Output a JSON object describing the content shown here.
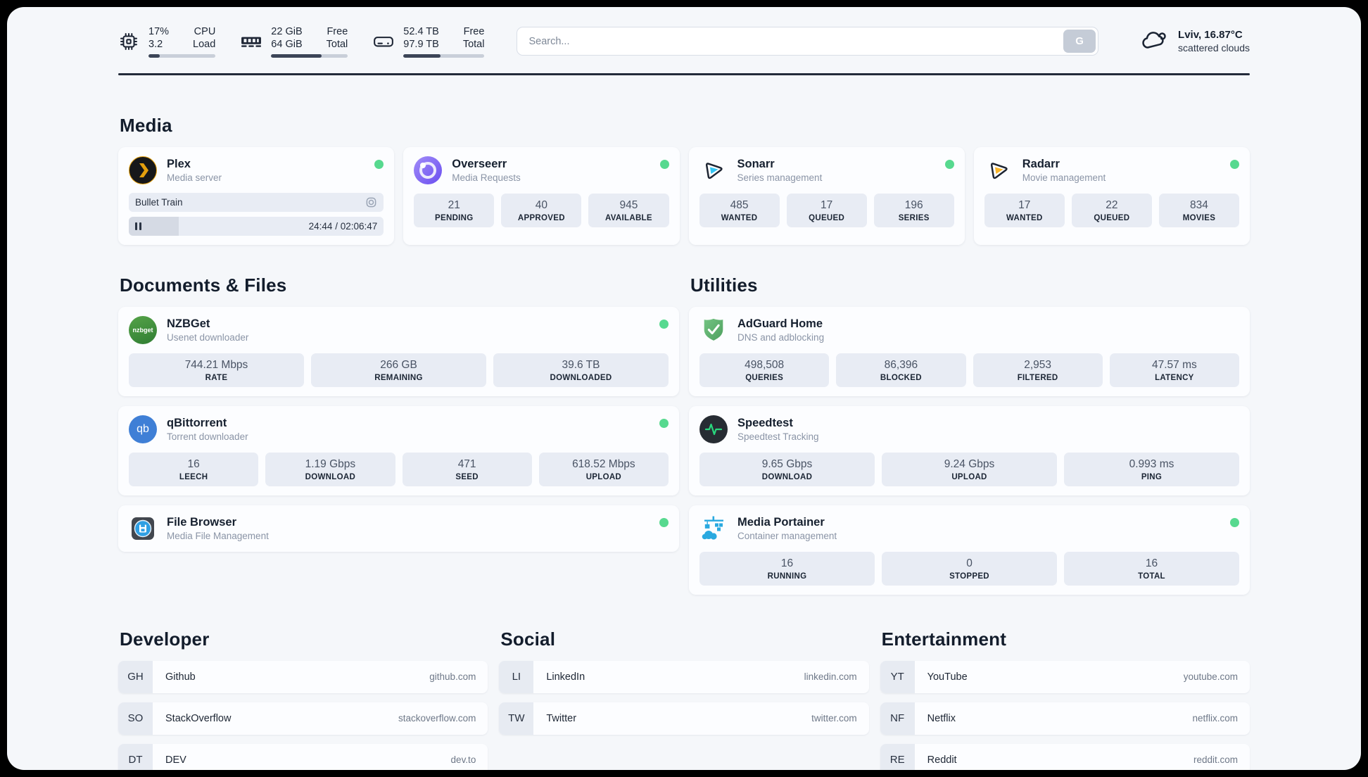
{
  "header": {
    "resources": [
      {
        "icon": "cpu-icon",
        "values": [
          "17%",
          "3.2"
        ],
        "labels": [
          "CPU",
          "Load"
        ],
        "progress": 17
      },
      {
        "icon": "memory-icon",
        "values": [
          "22 GiB",
          "64 GiB"
        ],
        "labels": [
          "Free",
          "Total"
        ],
        "progress": 66
      },
      {
        "icon": "disk-icon",
        "values": [
          "52.4 TB",
          "97.9 TB"
        ],
        "labels": [
          "Free",
          "Total"
        ],
        "progress": 46
      }
    ],
    "search": {
      "placeholder": "Search...",
      "button": "G"
    },
    "weather": {
      "icon": "cloud-icon",
      "location": "Lviv, 16.87°C",
      "condition": "scattered clouds"
    }
  },
  "sections": {
    "media": {
      "title": "Media"
    },
    "documents": {
      "title": "Documents & Files"
    },
    "utilities": {
      "title": "Utilities"
    },
    "developer": {
      "title": "Developer"
    },
    "social": {
      "title": "Social"
    },
    "entertainment": {
      "title": "Entertainment"
    }
  },
  "apps": {
    "plex": {
      "icon": "plex-icon",
      "name": "Plex",
      "desc": "Media server",
      "online": true,
      "player": {
        "title": "Bullet Train",
        "time": "24:44 / 02:06:47",
        "progress": 19.5
      }
    },
    "overseerr": {
      "icon": "overseerr-icon",
      "name": "Overseerr",
      "desc": "Media Requests",
      "online": true,
      "stats": [
        {
          "value": "21",
          "label": "PENDING"
        },
        {
          "value": "40",
          "label": "APPROVED"
        },
        {
          "value": "945",
          "label": "AVAILABLE"
        }
      ]
    },
    "sonarr": {
      "icon": "sonarr-icon",
      "name": "Sonarr",
      "desc": "Series management",
      "online": true,
      "stats": [
        {
          "value": "485",
          "label": "WANTED"
        },
        {
          "value": "17",
          "label": "QUEUED"
        },
        {
          "value": "196",
          "label": "SERIES"
        }
      ]
    },
    "radarr": {
      "icon": "radarr-icon",
      "name": "Radarr",
      "desc": "Movie management",
      "online": true,
      "stats": [
        {
          "value": "17",
          "label": "WANTED"
        },
        {
          "value": "22",
          "label": "QUEUED"
        },
        {
          "value": "834",
          "label": "MOVIES"
        }
      ]
    },
    "nzbget": {
      "icon": "nzbget-icon",
      "abbr": "nzbget",
      "name": "NZBGet",
      "desc": "Usenet downloader",
      "online": true,
      "stats": [
        {
          "value": "744.21 Mbps",
          "label": "RATE"
        },
        {
          "value": "266 GB",
          "label": "REMAINING"
        },
        {
          "value": "39.6 TB",
          "label": "DOWNLOADED"
        }
      ]
    },
    "qbittorrent": {
      "icon": "qbittorrent-icon",
      "abbr": "qb",
      "name": "qBittorrent",
      "desc": "Torrent downloader",
      "online": true,
      "stats": [
        {
          "value": "16",
          "label": "LEECH"
        },
        {
          "value": "1.19 Gbps",
          "label": "DOWNLOAD"
        },
        {
          "value": "471",
          "label": "SEED"
        },
        {
          "value": "618.52 Mbps",
          "label": "UPLOAD"
        }
      ]
    },
    "filebrowser": {
      "icon": "filebrowser-icon",
      "name": "File Browser",
      "desc": "Media File Management",
      "online": true
    },
    "adguard": {
      "icon": "adguard-icon",
      "name": "AdGuard Home",
      "desc": "DNS and adblocking",
      "stats": [
        {
          "value": "498,508",
          "label": "QUERIES"
        },
        {
          "value": "86,396",
          "label": "BLOCKED"
        },
        {
          "value": "2,953",
          "label": "FILTERED"
        },
        {
          "value": "47.57 ms",
          "label": "LATENCY"
        }
      ]
    },
    "speedtest": {
      "icon": "speedtest-icon",
      "name": "Speedtest",
      "desc": "Speedtest Tracking",
      "stats": [
        {
          "value": "9.65 Gbps",
          "label": "DOWNLOAD"
        },
        {
          "value": "9.24 Gbps",
          "label": "UPLOAD"
        },
        {
          "value": "0.993 ms",
          "label": "PING"
        }
      ]
    },
    "portainer": {
      "icon": "portainer-icon",
      "name": "Media Portainer",
      "desc": "Container management",
      "online": true,
      "stats": [
        {
          "value": "16",
          "label": "RUNNING"
        },
        {
          "value": "0",
          "label": "STOPPED"
        },
        {
          "value": "16",
          "label": "TOTAL"
        }
      ]
    }
  },
  "bookmarks": {
    "developer": [
      {
        "abbr": "GH",
        "name": "Github",
        "url": "github.com"
      },
      {
        "abbr": "SO",
        "name": "StackOverflow",
        "url": "stackoverflow.com"
      },
      {
        "abbr": "DT",
        "name": "DEV",
        "url": "dev.to"
      }
    ],
    "social": [
      {
        "abbr": "LI",
        "name": "LinkedIn",
        "url": "linkedin.com"
      },
      {
        "abbr": "TW",
        "name": "Twitter",
        "url": "twitter.com"
      }
    ],
    "entertainment": [
      {
        "abbr": "YT",
        "name": "YouTube",
        "url": "youtube.com"
      },
      {
        "abbr": "NF",
        "name": "Netflix",
        "url": "netflix.com"
      },
      {
        "abbr": "RE",
        "name": "Reddit",
        "url": "reddit.com"
      }
    ]
  },
  "colors": {
    "status_online": "#57d98f",
    "plex_orange": "#e5a00d",
    "sonarr_cyan": "#35c5f3",
    "radarr_yellow": "#f9b52a",
    "overseerr_purple": "#7a5af5",
    "nzbget_green": "#46953c",
    "qbittorrent_blue": "#3f7fd6",
    "adguard_green": "#5aab64",
    "speedtest_pulse": "#29d67d",
    "portainer_blue": "#2aa9e0"
  }
}
